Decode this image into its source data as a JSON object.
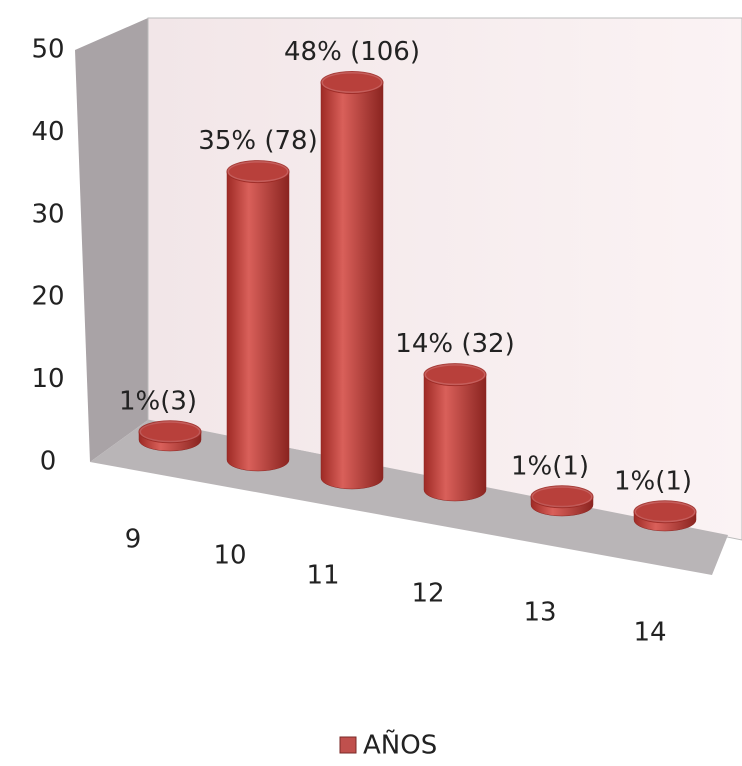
{
  "chart_data": {
    "type": "bar3d",
    "categories": [
      "9",
      "10",
      "11",
      "12",
      "13",
      "14"
    ],
    "series": [
      {
        "name": "AÑOS",
        "color": "#c0504d",
        "values": [
          1,
          35,
          48,
          14,
          1,
          1
        ],
        "value_labels": [
          "1%(3)",
          "35% (78)",
          "48% (106)",
          "14% (32)",
          "1%(1)",
          "1%(1)"
        ]
      }
    ],
    "ylim": [
      0,
      50
    ],
    "yticks": [
      0,
      10,
      20,
      30,
      40,
      50
    ],
    "grid": false
  }
}
